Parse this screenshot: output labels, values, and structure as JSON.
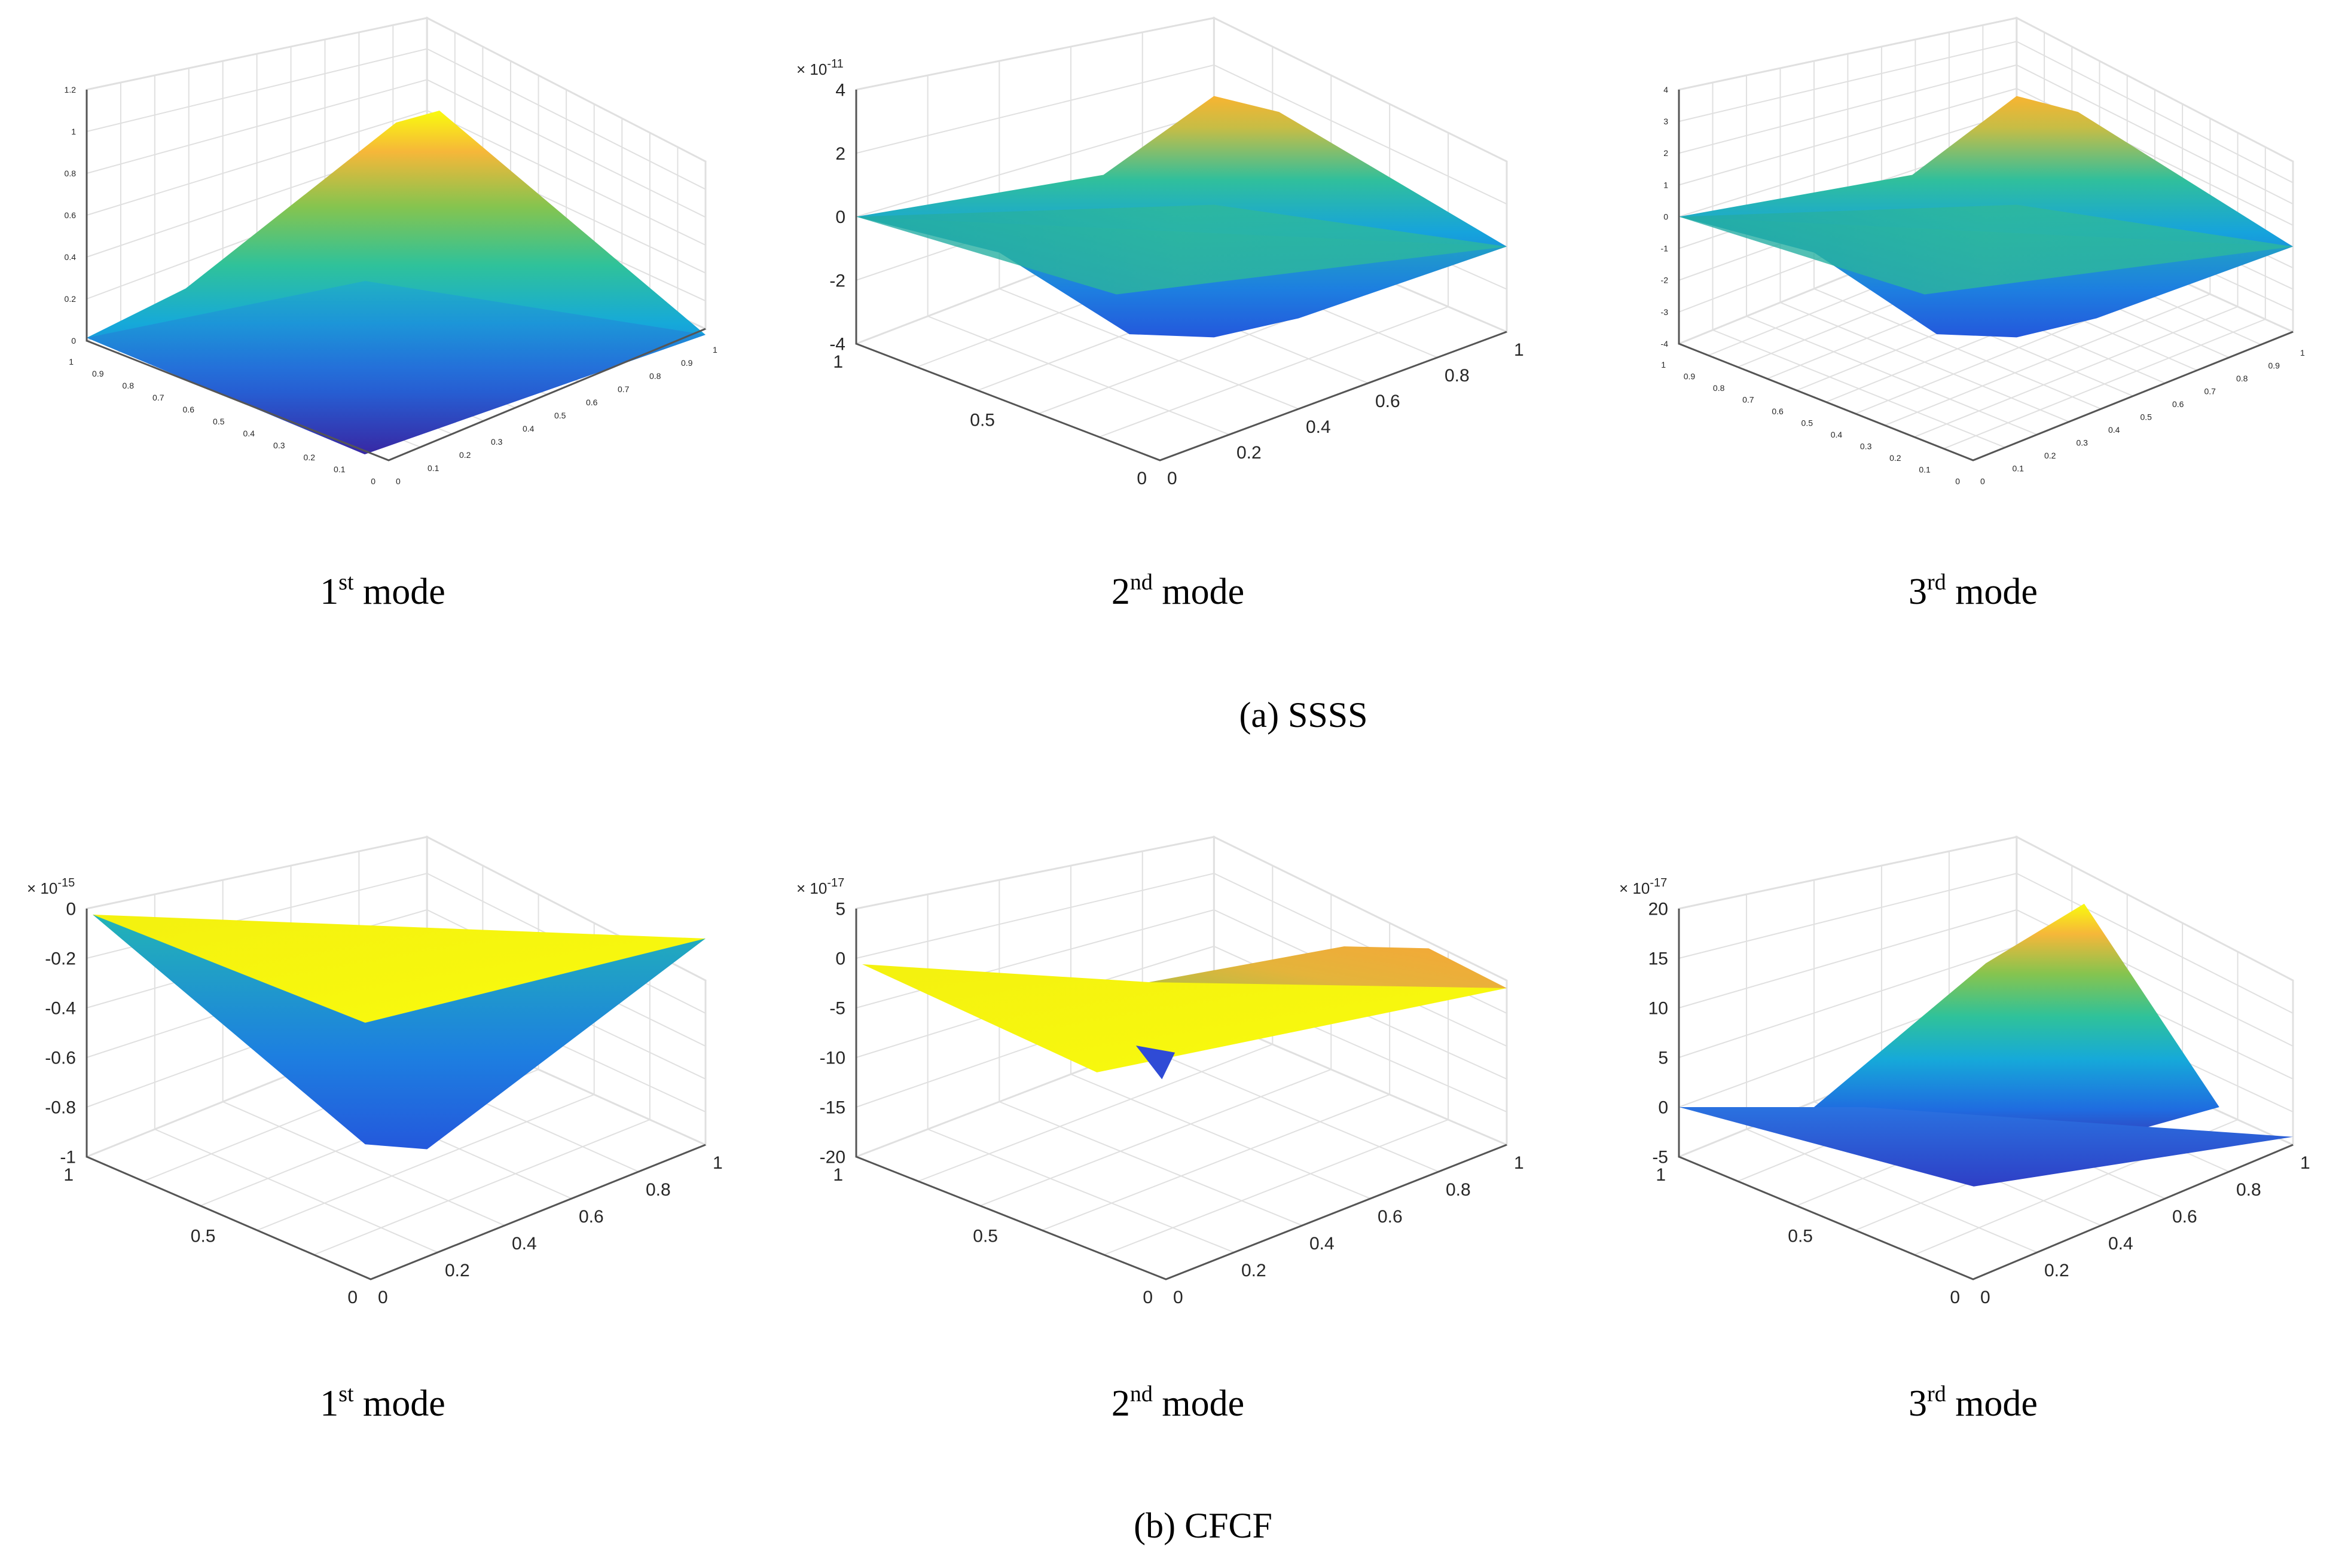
{
  "panels": [
    {
      "id": "a",
      "label": "(a) SSSS",
      "modes": [
        {
          "label": "1st mode",
          "base": "1",
          "sup": "st",
          "suffix": " mode"
        },
        {
          "label": "2nd mode",
          "base": "2",
          "sup": "nd",
          "suffix": " mode"
        },
        {
          "label": "3rd mode",
          "base": "3",
          "sup": "rd",
          "suffix": " mode"
        }
      ]
    },
    {
      "id": "b",
      "label": "(b) CFCF",
      "modes": [
        {
          "label": "1st mode",
          "base": "1",
          "sup": "st",
          "suffix": " mode"
        },
        {
          "label": "2nd mode",
          "base": "2",
          "sup": "nd",
          "suffix": " mode"
        },
        {
          "label": "3rd mode",
          "base": "3",
          "sup": "rd",
          "suffix": " mode"
        }
      ]
    }
  ],
  "colors": {
    "grid": "#e0e0e0",
    "axis": "#555555",
    "colormap": [
      "#3e26a8",
      "#1f6ce0",
      "#16a9d9",
      "#2fc29a",
      "#85c44f",
      "#f6b739",
      "#f9fb0e"
    ]
  },
  "chart_data": [
    {
      "type": "surface",
      "panel": "(a) SSSS",
      "mode": "1st mode",
      "shape": "single-peak",
      "exponent": "",
      "zlim": [
        0,
        1.2
      ],
      "zticks": [
        "0",
        "0.2",
        "0.4",
        "0.6",
        "0.8",
        "1",
        "1.2"
      ],
      "xticks": [
        "0",
        "0.1",
        "0.2",
        "0.3",
        "0.4",
        "0.5",
        "0.6",
        "0.7",
        "0.8",
        "0.9",
        "1"
      ],
      "yticks": [
        "0",
        "0.1",
        "0.2",
        "0.3",
        "0.4",
        "0.5",
        "0.6",
        "0.7",
        "0.8",
        "0.9",
        "1"
      ],
      "grid": true
    },
    {
      "type": "surface",
      "panel": "(a) SSSS",
      "mode": "2nd mode",
      "shape": "antisymmetric",
      "exponent": "× 10",
      "exponent_power": "-11",
      "zlim": [
        -4,
        4
      ],
      "zticks": [
        "-4",
        "-2",
        "0",
        "2",
        "4"
      ],
      "xticks": [
        "0",
        "0.2",
        "0.4",
        "0.6",
        "0.8",
        "1"
      ],
      "yticks": [
        "0",
        "0.5",
        "1"
      ],
      "grid": true
    },
    {
      "type": "surface",
      "panel": "(a) SSSS",
      "mode": "3rd mode",
      "shape": "antisymmetric",
      "exponent": "",
      "zlim": [
        -4,
        4
      ],
      "zticks": [
        "-4",
        "-3",
        "-2",
        "-1",
        "0",
        "1",
        "2",
        "3",
        "4"
      ],
      "xticks": [
        "0",
        "0.1",
        "0.2",
        "0.3",
        "0.4",
        "0.5",
        "0.6",
        "0.7",
        "0.8",
        "0.9",
        "1"
      ],
      "yticks": [
        "0",
        "0.1",
        "0.2",
        "0.3",
        "0.4",
        "0.5",
        "0.6",
        "0.7",
        "0.8",
        "0.9",
        "1"
      ],
      "grid": true
    },
    {
      "type": "surface",
      "panel": "(b) CFCF",
      "mode": "1st mode",
      "shape": "single-dip",
      "exponent": "× 10",
      "exponent_power": "-15",
      "zlim": [
        -1,
        0
      ],
      "zticks": [
        "-1",
        "-0.8",
        "-0.6",
        "-0.4",
        "-0.2",
        "0"
      ],
      "xticks": [
        "0",
        "0.2",
        "0.4",
        "0.6",
        "0.8",
        "1"
      ],
      "yticks": [
        "0",
        "0.5",
        "1"
      ],
      "grid": true
    },
    {
      "type": "surface",
      "panel": "(b) CFCF",
      "mode": "2nd mode",
      "shape": "twisted",
      "exponent": "× 10",
      "exponent_power": "-17",
      "zlim": [
        -20,
        5
      ],
      "zticks": [
        "-20",
        "-15",
        "-10",
        "-5",
        "0",
        "5"
      ],
      "xticks": [
        "0",
        "0.2",
        "0.4",
        "0.6",
        "0.8",
        "1"
      ],
      "yticks": [
        "0",
        "0.5",
        "1"
      ],
      "grid": true
    },
    {
      "type": "surface",
      "panel": "(b) CFCF",
      "mode": "3rd mode",
      "shape": "ramp-peak",
      "exponent": "× 10",
      "exponent_power": "-17",
      "zlim": [
        -5,
        20
      ],
      "zticks": [
        "-5",
        "0",
        "5",
        "10",
        "15",
        "20"
      ],
      "xticks": [
        "0",
        "0.2",
        "0.4",
        "0.6",
        "0.8",
        "1"
      ],
      "yticks": [
        "0",
        "0.5",
        "1"
      ],
      "grid": true
    }
  ]
}
